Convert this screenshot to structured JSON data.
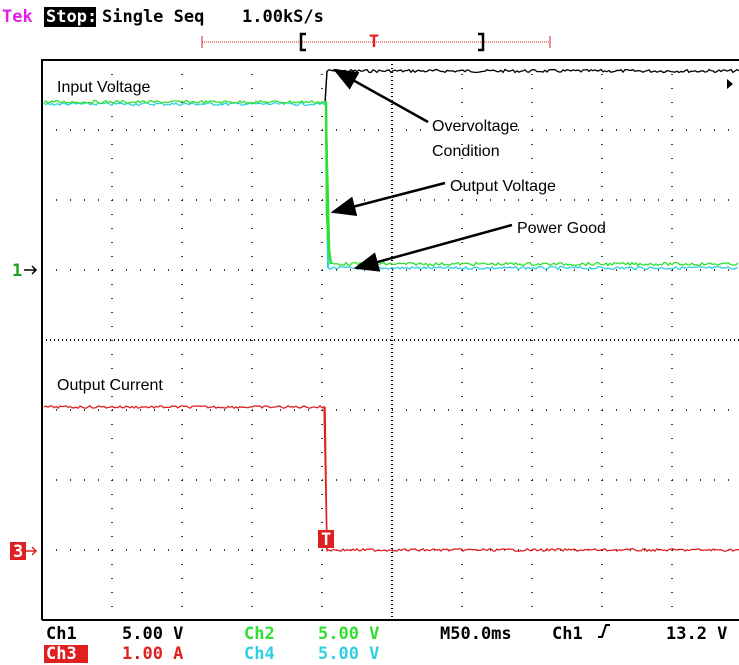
{
  "header": {
    "brand": "Tek",
    "state": "Stop:",
    "mode": "Single Seq",
    "rate": "1.00kS/s",
    "trigger_position": "T"
  },
  "annotations": {
    "input_voltage": "Input Voltage",
    "overvoltage_1": "Overvoltage",
    "overvoltage_2": "Condition",
    "output_voltage": "Output Voltage",
    "power_good": "Power Good",
    "output_current": "Output Current"
  },
  "markers": {
    "ch1": "1",
    "ch3": "3",
    "trigger": "T"
  },
  "footer": {
    "ch1": {
      "name": "Ch1",
      "scale": "5.00 V"
    },
    "ch2": {
      "name": "Ch2",
      "scale": "5.00 V"
    },
    "ch3": {
      "name": "Ch3",
      "scale": "1.00 A"
    },
    "ch4": {
      "name": "Ch4",
      "scale": "5.00 V"
    },
    "timebase": "M50.0ms",
    "trigger_source": "Ch1",
    "trigger_level": "13.2 V"
  }
}
